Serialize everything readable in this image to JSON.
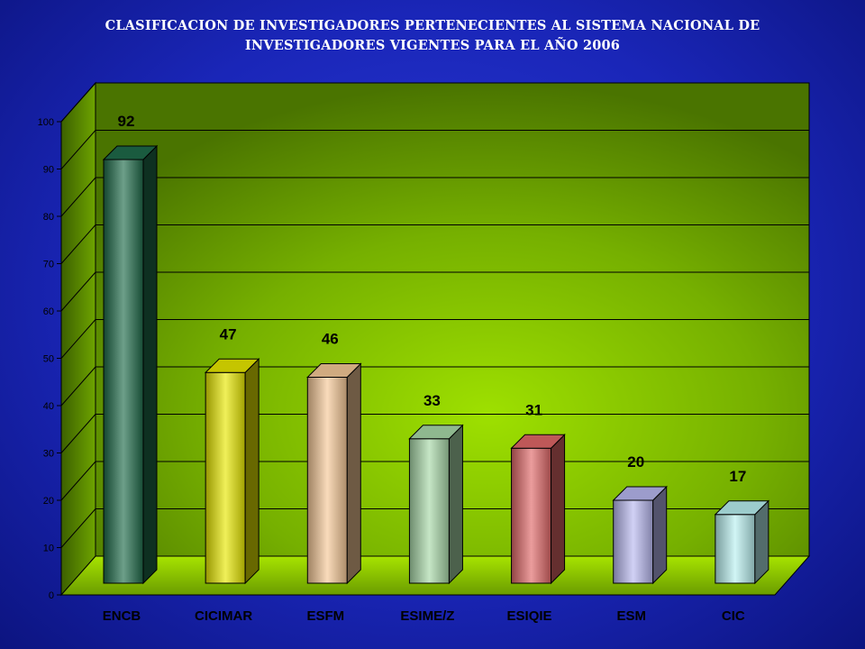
{
  "title_line1": "CLASIFICACION DE INVESTIGADORES PERTENECIENTES AL SISTEMA NACIONAL DE",
  "title_line2": "INVESTIGADORES  VIGENTES PARA EL AÑO  2006",
  "chart_data": {
    "type": "bar",
    "title": "CLASIFICACION DE INVESTIGADORES PERTENECIENTES AL SISTEMA NACIONAL DE INVESTIGADORES  VIGENTES PARA EL AÑO  2006",
    "categories": [
      "ENCB",
      "CICIMAR",
      "ESFM",
      "ESIME/Z",
      "ESIQIE",
      "ESM",
      "CIC"
    ],
    "values": [
      92,
      47,
      46,
      33,
      31,
      20,
      17
    ],
    "ylim": [
      0,
      100
    ],
    "yticks": [
      0,
      10,
      20,
      30,
      40,
      50,
      60,
      70,
      80,
      90,
      100
    ],
    "grid": true,
    "legend": "none",
    "bar_colors": [
      "#1f6b4a",
      "#e8e800",
      "#f5c896",
      "#a8d8a8",
      "#e06868",
      "#b8b8f0",
      "#b8f0f0"
    ],
    "wall_color": "#7fbf00",
    "floor_color": "#a6e000"
  }
}
